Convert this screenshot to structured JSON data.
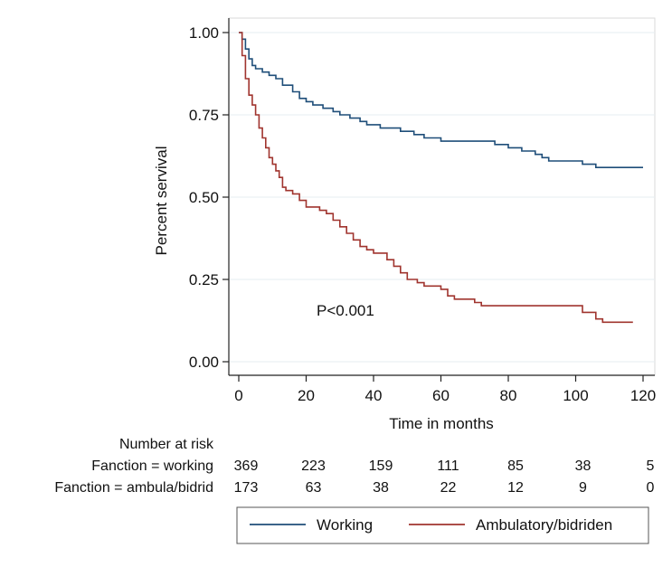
{
  "chart_data": {
    "type": "line",
    "title": "",
    "xlabel": "Time in months",
    "ylabel": "Percent servival",
    "xlim": [
      0,
      120
    ],
    "ylim": [
      0,
      1
    ],
    "x_ticks": [
      0,
      20,
      40,
      60,
      80,
      100,
      120
    ],
    "x_tick_labels": [
      "0",
      "20",
      "40",
      "60",
      "80",
      "100",
      "120"
    ],
    "y_ticks": [
      0,
      0.25,
      0.5,
      0.75,
      1
    ],
    "y_tick_labels": [
      "0.00",
      "0.25",
      "0.50",
      "0.75",
      "1.00"
    ],
    "grid": true,
    "annotation": "P<0.001",
    "series": [
      {
        "name": "Working",
        "color": "#1f4e79",
        "points": [
          [
            0,
            1.0
          ],
          [
            1,
            0.98
          ],
          [
            2,
            0.95
          ],
          [
            3,
            0.92
          ],
          [
            4,
            0.9
          ],
          [
            5,
            0.89
          ],
          [
            7,
            0.88
          ],
          [
            9,
            0.87
          ],
          [
            11,
            0.86
          ],
          [
            13,
            0.84
          ],
          [
            16,
            0.82
          ],
          [
            18,
            0.8
          ],
          [
            20,
            0.79
          ],
          [
            22,
            0.78
          ],
          [
            25,
            0.77
          ],
          [
            28,
            0.76
          ],
          [
            30,
            0.75
          ],
          [
            33,
            0.74
          ],
          [
            36,
            0.73
          ],
          [
            38,
            0.72
          ],
          [
            42,
            0.71
          ],
          [
            48,
            0.7
          ],
          [
            52,
            0.69
          ],
          [
            55,
            0.68
          ],
          [
            60,
            0.67
          ],
          [
            64,
            0.67
          ],
          [
            72,
            0.67
          ],
          [
            76,
            0.66
          ],
          [
            80,
            0.65
          ],
          [
            84,
            0.64
          ],
          [
            88,
            0.63
          ],
          [
            90,
            0.62
          ],
          [
            92,
            0.61
          ],
          [
            95,
            0.61
          ],
          [
            102,
            0.6
          ],
          [
            106,
            0.59
          ],
          [
            120,
            0.59
          ]
        ]
      },
      {
        "name": "Ambulatory/bidriden",
        "color": "#a0342e",
        "points": [
          [
            0,
            1.0
          ],
          [
            1,
            0.93
          ],
          [
            2,
            0.86
          ],
          [
            3,
            0.81
          ],
          [
            4,
            0.78
          ],
          [
            5,
            0.75
          ],
          [
            6,
            0.71
          ],
          [
            7,
            0.68
          ],
          [
            8,
            0.65
          ],
          [
            9,
            0.62
          ],
          [
            10,
            0.6
          ],
          [
            11,
            0.58
          ],
          [
            12,
            0.56
          ],
          [
            13,
            0.53
          ],
          [
            14,
            0.52
          ],
          [
            16,
            0.51
          ],
          [
            18,
            0.49
          ],
          [
            20,
            0.47
          ],
          [
            24,
            0.46
          ],
          [
            26,
            0.45
          ],
          [
            28,
            0.43
          ],
          [
            30,
            0.41
          ],
          [
            32,
            0.39
          ],
          [
            34,
            0.37
          ],
          [
            36,
            0.35
          ],
          [
            38,
            0.34
          ],
          [
            40,
            0.33
          ],
          [
            44,
            0.31
          ],
          [
            46,
            0.29
          ],
          [
            48,
            0.27
          ],
          [
            50,
            0.25
          ],
          [
            53,
            0.24
          ],
          [
            55,
            0.23
          ],
          [
            60,
            0.22
          ],
          [
            62,
            0.2
          ],
          [
            64,
            0.19
          ],
          [
            70,
            0.18
          ],
          [
            72,
            0.17
          ],
          [
            80,
            0.17
          ],
          [
            100,
            0.17
          ],
          [
            102,
            0.15
          ],
          [
            106,
            0.13
          ],
          [
            108,
            0.12
          ],
          [
            117,
            0.12
          ]
        ]
      }
    ],
    "risk_table": {
      "title": "Number at risk",
      "time_points": [
        0,
        20,
        40,
        60,
        80,
        100,
        120
      ],
      "rows": [
        {
          "label": "Fanction = working",
          "values": [
            "369",
            "223",
            "159",
            "111",
            "85",
            "38",
            "5"
          ]
        },
        {
          "label": "Fanction = ambula/bidrid",
          "values": [
            "173",
            "63",
            "38",
            "22",
            "12",
            "9",
            "0"
          ]
        }
      ]
    },
    "legend": {
      "position": "bottom",
      "entries": [
        {
          "label": "Working",
          "color": "#1f4e79"
        },
        {
          "label": "Ambulatory/bidriden",
          "color": "#a0342e"
        }
      ]
    }
  }
}
